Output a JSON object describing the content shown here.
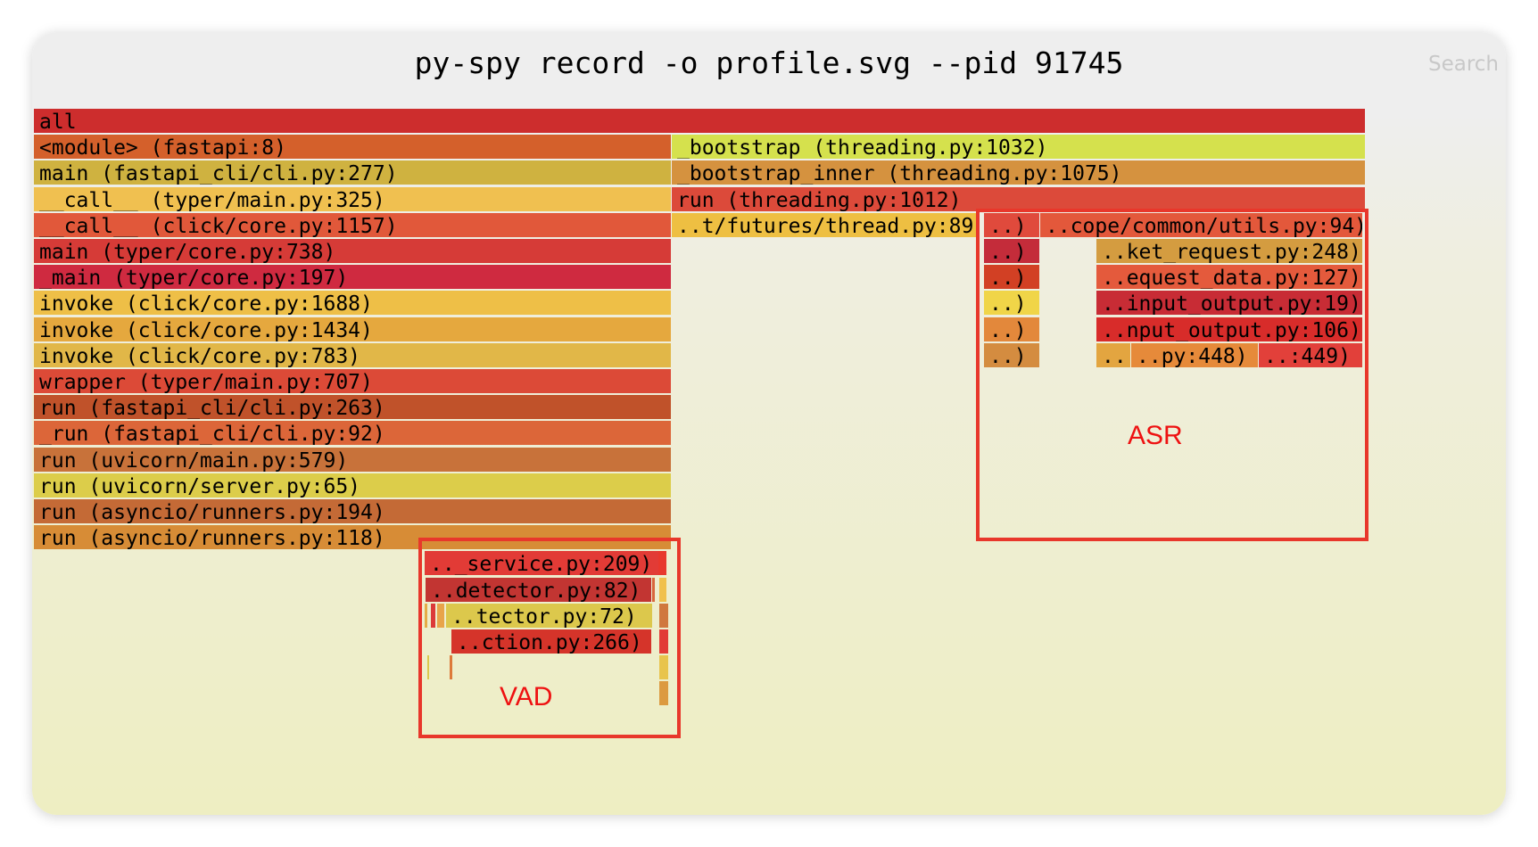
{
  "header": {
    "title": "py-spy record -o profile.svg --pid 91745",
    "search_label": "Search"
  },
  "annotations": {
    "asr_label": "ASR",
    "vad_label": "VAD",
    "box_color": "#e8372b",
    "label_color": "#ee1111"
  },
  "frames": {
    "all": {
      "label": "all",
      "color": "#cd2d2d"
    },
    "left_stack": [
      {
        "label": "<module> (fastapi:8)",
        "color": "#d4602b"
      },
      {
        "label": "main (fastapi_cli/cli.py:277)",
        "color": "#cfb240"
      },
      {
        "label": "__call__ (typer/main.py:325)",
        "color": "#f0c050"
      },
      {
        "label": "__call__ (click/core.py:1157)",
        "color": "#e1583a"
      },
      {
        "label": "main (typer/core.py:738)",
        "color": "#d63b37"
      },
      {
        "label": "_main (typer/core.py:197)",
        "color": "#cf2a40"
      },
      {
        "label": "invoke (click/core.py:1688)",
        "color": "#eebf47"
      },
      {
        "label": "invoke (click/core.py:1434)",
        "color": "#e5a83e"
      },
      {
        "label": "invoke (click/core.py:783)",
        "color": "#e1b748"
      },
      {
        "label": "wrapper (typer/main.py:707)",
        "color": "#dc4a37"
      },
      {
        "label": "run (fastapi_cli/cli.py:263)",
        "color": "#c0522a"
      },
      {
        "label": "_run (fastapi_cli/cli.py:92)",
        "color": "#dc6639"
      },
      {
        "label": "run (uvicorn/main.py:579)",
        "color": "#c8723a"
      },
      {
        "label": "run (uvicorn/server.py:65)",
        "color": "#dccd4a"
      },
      {
        "label": "run (asyncio/runners.py:194)",
        "color": "#c46a36"
      },
      {
        "label": "run (asyncio/runners.py:118)",
        "color": "#d78c36"
      }
    ],
    "right_stack": [
      {
        "label": "_bootstrap (threading.py:1032)",
        "color": "#d5e14d"
      },
      {
        "label": "_bootstrap_inner (threading.py:1075)",
        "color": "#d5923f"
      },
      {
        "label": "run (threading.py:1012)",
        "color": "#dc4a3a"
      },
      {
        "label": "..t/futures/thread.py:89)",
        "color": "#eebf42"
      }
    ],
    "asr_narrow": [
      {
        "label": "..)",
        "color": "#e04a3c"
      },
      {
        "label": "..)",
        "color": "#c42c3a"
      },
      {
        "label": "..)",
        "color": "#d24024"
      },
      {
        "label": "..)",
        "color": "#f0d548"
      },
      {
        "label": "..)",
        "color": "#e3883b"
      },
      {
        "label": "..)",
        "color": "#d48c40"
      }
    ],
    "asr_wide": [
      {
        "label": "..cope/common/utils.py:94)",
        "color": "#e3583b"
      },
      {
        "label": "..ket_request.py:248)",
        "color": "#d49c40"
      },
      {
        "label": "..equest_data.py:127)",
        "color": "#e45a3c"
      },
      {
        "label": "..input_output.py:19)",
        "color": "#c82c35"
      },
      {
        "label": "..nput_output.py:106)",
        "color": "#d82c2a"
      }
    ],
    "asr_bottom": [
      {
        "label": "..",
        "color": "#e3a540"
      },
      {
        "label": "..py:448)",
        "color": "#e68a3a"
      },
      {
        "label": "..:449)",
        "color": "#e2403a"
      }
    ],
    "vad": [
      {
        "label": ".._service.py:209)",
        "color": "#e23b36"
      },
      {
        "label": "..detector.py:82)",
        "color": "#c23532"
      },
      {
        "label": "..tector.py:72)",
        "color": "#dcc84c"
      },
      {
        "label": "..ction.py:266)",
        "color": "#d5342a"
      }
    ],
    "vad_slivers": [
      {
        "color": "#e8382d"
      },
      {
        "color": "#d8673c"
      },
      {
        "color": "#f0c04c"
      },
      {
        "color": "#e4ac46"
      },
      {
        "color": "#dc3a3a"
      },
      {
        "color": "#e8a44a"
      },
      {
        "color": "#d0783e"
      },
      {
        "color": "#e23a36"
      },
      {
        "color": "#dcc84c"
      },
      {
        "color": "#dd7a3a"
      },
      {
        "color": "#e8c44c"
      },
      {
        "color": "#dc9a40"
      }
    ]
  }
}
